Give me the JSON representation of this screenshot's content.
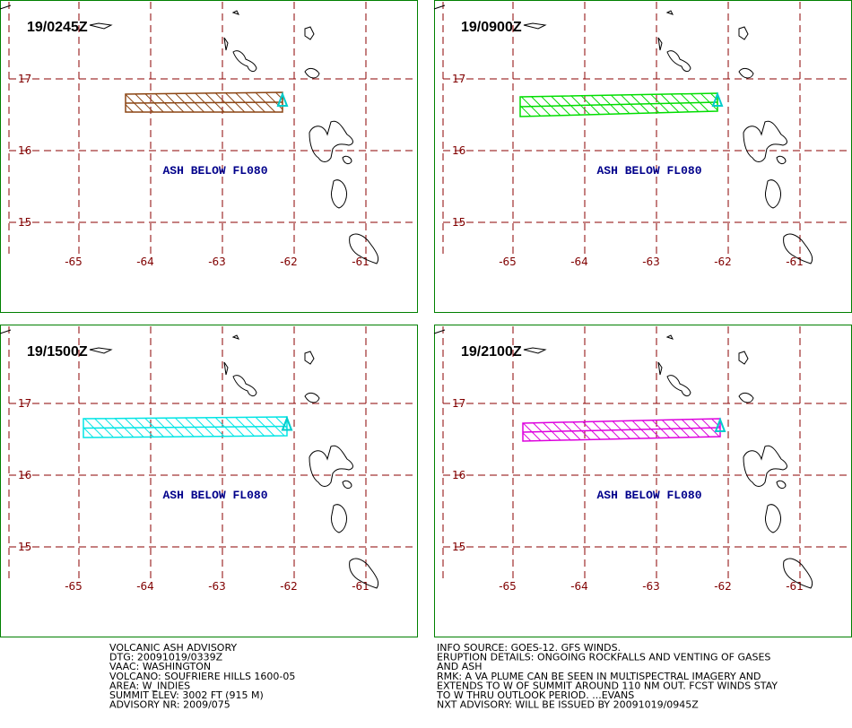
{
  "panels": [
    {
      "time": "19/0245Z",
      "ash_text": "ASH BELOW FL080",
      "ash_color": "#8b4513"
    },
    {
      "time": "19/0900Z",
      "ash_text": "ASH BELOW FL080",
      "ash_color": "#00dd00"
    },
    {
      "time": "19/1500Z",
      "ash_text": "ASH BELOW FL080",
      "ash_color": "#00e5e5"
    },
    {
      "time": "19/2100Z",
      "ash_text": "ASH BELOW FL080",
      "ash_color": "#dd00dd"
    }
  ],
  "lat_labels": [
    "17",
    "16",
    "15"
  ],
  "lon_labels": [
    "-65",
    "-64",
    "-63",
    "-62",
    "-61"
  ],
  "footer_left": [
    "VOLCANIC ASH ADVISORY",
    "DTG: 20091019/0339Z",
    "VAAC: WASHINGTON",
    "VOLCANO: SOUFRIERE HILLS 1600-05",
    "AREA: W_INDIES",
    "SUMMIT ELEV: 3002 FT (915 M)",
    "ADVISORY NR: 2009/075"
  ],
  "footer_right": [
    "INFO SOURCE: GOES-12. GFS WINDS.",
    "ERUPTION DETAILS: ONGOING ROCKFALLS AND VENTING OF GASES",
    "AND ASH",
    "RMK: A VA PLUME CAN BE SEEN IN MULTISPECTRAL IMAGERY AND",
    "EXTENDS TO W OF SUMMIT AROUND 110 NM OUT. FCST WINDS STAY",
    "TO W THRU OUTLOOK PERIOD. ...EVANS",
    "NXT ADVISORY: WILL BE ISSUED BY 20091019/0945Z"
  ]
}
